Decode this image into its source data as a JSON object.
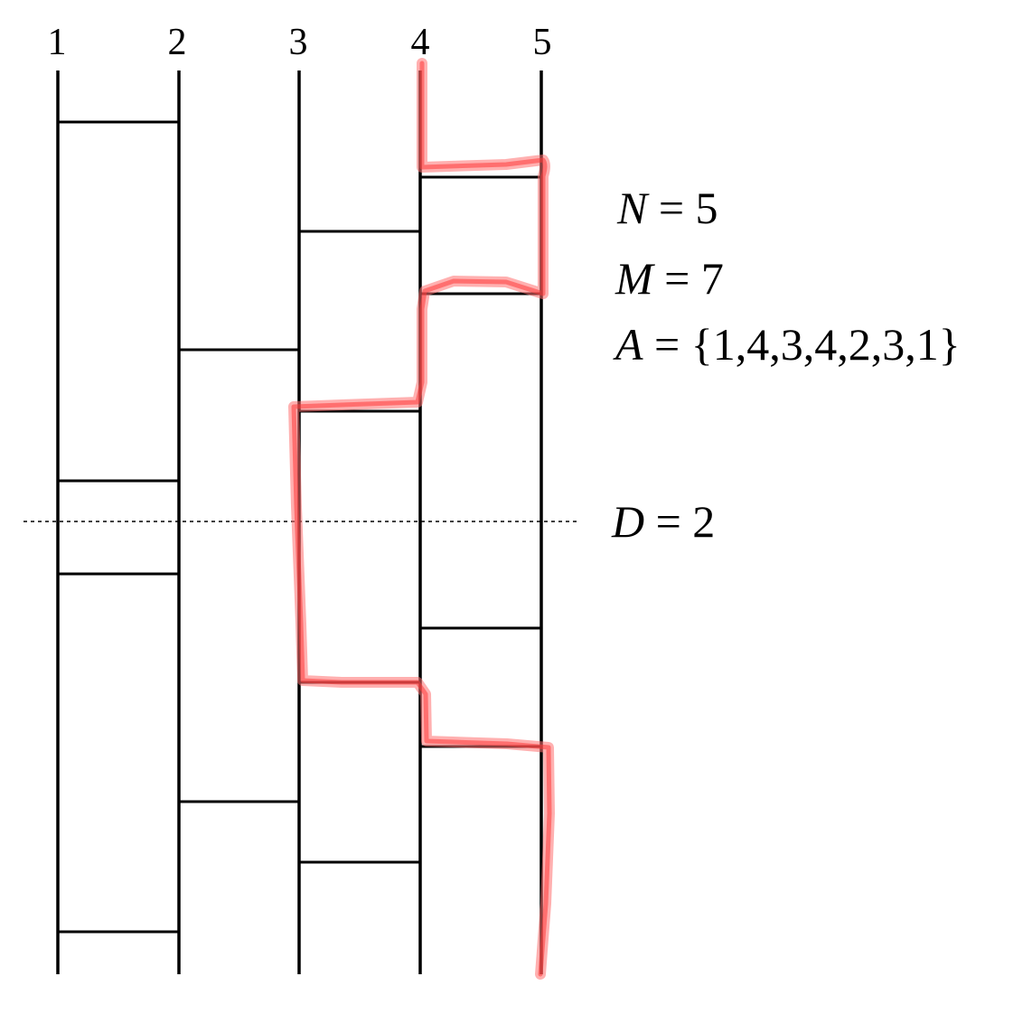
{
  "columns": [
    "1",
    "2",
    "3",
    "4",
    "5"
  ],
  "params": {
    "n": {
      "var": "N",
      "rest": " = 5"
    },
    "m": {
      "var": "M",
      "rest": " = 7"
    },
    "a": {
      "var": "A",
      "rest": " = {1,4,3,4,2,3,1}"
    },
    "d": {
      "var": "D",
      "rest": " = 2"
    }
  },
  "colors": {
    "ink": "#000000",
    "highlight": "#ff3b3b"
  }
}
